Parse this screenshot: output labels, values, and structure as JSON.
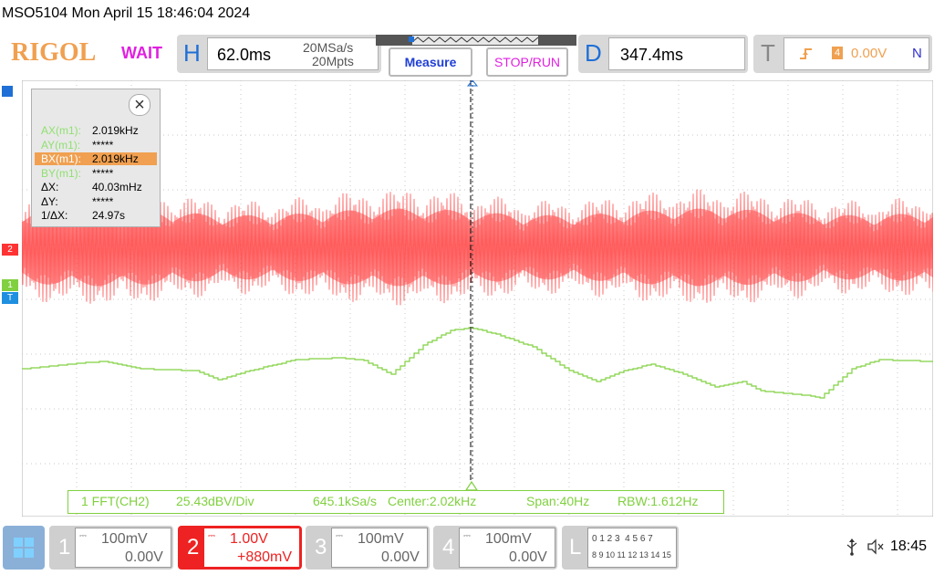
{
  "header": {
    "model": "MSO5104",
    "datetime": "Mon April 15 18:46:04 2024",
    "logo": "RIGOL",
    "run_status": "WAIT"
  },
  "horizontal": {
    "letter": "H",
    "timebase": "62.0ms",
    "sample_rate": "20MSa/s",
    "memory_depth": "20Mpts"
  },
  "buttons": {
    "measure": "Measure",
    "stop_run": "STOP/RUN"
  },
  "delay": {
    "letter": "D",
    "value": "347.4ms"
  },
  "trigger": {
    "letter": "T",
    "source": "4",
    "level": "0.00V",
    "mode": "N"
  },
  "cursor_panel": {
    "rows": [
      {
        "label": "AX(m1):",
        "value": "2.019kHz",
        "label_color": "#90e070",
        "highlight": false
      },
      {
        "label": "AY(m1):",
        "value": "*****",
        "label_color": "#90e070",
        "highlight": false
      },
      {
        "label": "BX(m1):",
        "value": "2.019kHz",
        "label_color": "#90e070",
        "highlight": true
      },
      {
        "label": "BY(m1):",
        "value": "*****",
        "label_color": "#90e070",
        "highlight": false
      },
      {
        "label": "ΔX:",
        "value": "40.03mHz",
        "label_color": "#000000",
        "highlight": false
      },
      {
        "label": "ΔY:",
        "value": "*****",
        "label_color": "#000000",
        "highlight": false
      },
      {
        "label": "1/ΔX:",
        "value": "24.97s",
        "label_color": "#000000",
        "highlight": false
      }
    ],
    "close": "×"
  },
  "markers": {
    "ch2": "2",
    "ch1": "1",
    "trig": "T"
  },
  "fft": {
    "source": "1 FFT(CH2)",
    "scale": "25.43dBV/Div",
    "rate": "645.1kSa/s",
    "center": "Center:2.02kHz",
    "span": "Span:40Hz",
    "rbw": "RBW:1.612Hz"
  },
  "channels": [
    {
      "num": "1",
      "scale": "100mV",
      "offset": "0.00V",
      "active": false
    },
    {
      "num": "2",
      "scale": "1.00V",
      "offset": "+880mV",
      "active": true
    },
    {
      "num": "3",
      "scale": "100mV",
      "offset": "0.00V",
      "active": false
    },
    {
      "num": "4",
      "scale": "100mV",
      "offset": "0.00V",
      "active": false
    }
  ],
  "logic": {
    "letter": "L",
    "row1": "0 1 2 3  4 5 6 7",
    "row2": "8 9 10 11 12 13 14 15"
  },
  "status": {
    "time": "18:45"
  },
  "colors": {
    "ch2": "#ff3333",
    "fft": "#80d040",
    "accent": "#1f6fd6",
    "orange": "#f0a050"
  }
}
